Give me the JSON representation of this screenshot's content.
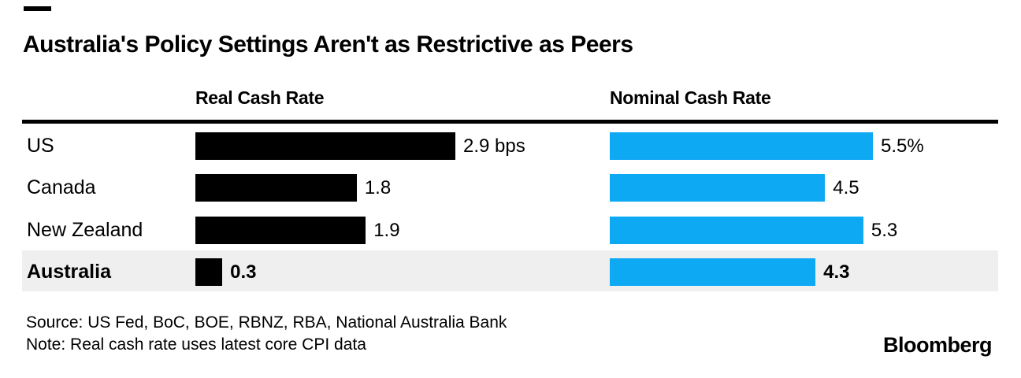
{
  "header": {
    "title": "Australia's Policy Settings Aren't as Restrictive as Peers"
  },
  "columns": {
    "real": "Real Cash Rate",
    "nominal": "Nominal Cash Rate"
  },
  "rows": [
    {
      "label": "US",
      "real_label": "2.9 bps",
      "nominal_label": "5.5%",
      "highlight": false
    },
    {
      "label": "Canada",
      "real_label": "1.8",
      "nominal_label": "4.5",
      "highlight": false
    },
    {
      "label": "New Zealand",
      "real_label": "1.9",
      "nominal_label": "5.3",
      "highlight": false
    },
    {
      "label": "Australia",
      "real_label": "0.3",
      "nominal_label": "4.3",
      "highlight": true
    }
  ],
  "footer": {
    "source": "Source: US Fed, BoC, BOE, RBNZ, RBA, National Australia Bank",
    "note": "Note: Real cash rate uses latest core CPI data",
    "logo": "Bloomberg"
  },
  "colors": {
    "bar_real": "#000000",
    "bar_nominal": "#0da9f3",
    "highlight_row_bg": "#efefef",
    "rule": "#000000"
  },
  "chart_data": {
    "type": "bar",
    "orientation": "horizontal",
    "title": "Australia's Policy Settings Aren't as Restrictive as Peers",
    "categories": [
      "US",
      "Canada",
      "New Zealand",
      "Australia"
    ],
    "series": [
      {
        "name": "Real Cash Rate",
        "values": [
          2.9,
          1.8,
          1.9,
          0.3
        ],
        "color": "#000000",
        "unit": "bps",
        "xlim": [
          0,
          2.9
        ]
      },
      {
        "name": "Nominal Cash Rate",
        "values": [
          5.5,
          4.5,
          5.3,
          4.3
        ],
        "color": "#0da9f3",
        "unit": "%",
        "xlim": [
          0,
          5.5
        ]
      }
    ],
    "data_labels": {
      "real": [
        "2.9 bps",
        "1.8",
        "1.9",
        "0.3"
      ],
      "nominal": [
        "5.5%",
        "4.5",
        "5.3",
        "4.3"
      ]
    },
    "highlighted_category": "Australia",
    "grid": false,
    "legend_position": "none",
    "source": "Source: US Fed, BoC, BOE, RBNZ, RBA, National Australia Bank",
    "note": "Note: Real cash rate uses latest core CPI data"
  }
}
